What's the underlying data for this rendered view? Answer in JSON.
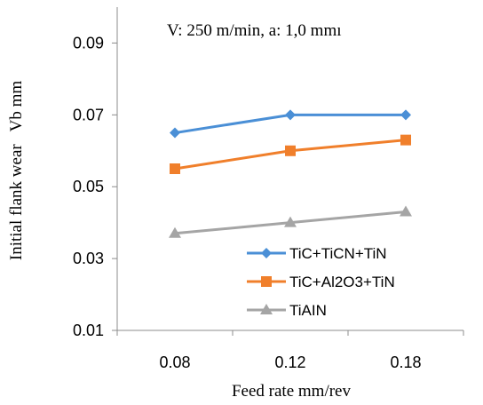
{
  "chart_data": {
    "type": "line",
    "annotation": "V: 250 m/min, a: 1,0 mmı",
    "xlabel": "Feed rate mm/rev",
    "ylabel": "Initial flank wear   Vb mm",
    "categories": [
      "0.08",
      "0.12",
      "0.18"
    ],
    "ylim": [
      0.01,
      0.1
    ],
    "yticks": [
      "0.01",
      "0.03",
      "0.05",
      "0.07",
      "0.09"
    ],
    "grid": false,
    "legend_position": "bottom-right",
    "series": [
      {
        "name": "TiC+TiCN+TiN",
        "values": [
          0.065,
          0.07,
          0.07
        ],
        "color": "#4a8fd6",
        "marker": "diamond"
      },
      {
        "name": "TiC+Al2O3+TiN",
        "values": [
          0.055,
          0.06,
          0.063
        ],
        "color": "#f07f2b",
        "marker": "square"
      },
      {
        "name": "TiAIN",
        "values": [
          0.037,
          0.04,
          0.043
        ],
        "color": "#a5a5a5",
        "marker": "triangle"
      }
    ]
  }
}
